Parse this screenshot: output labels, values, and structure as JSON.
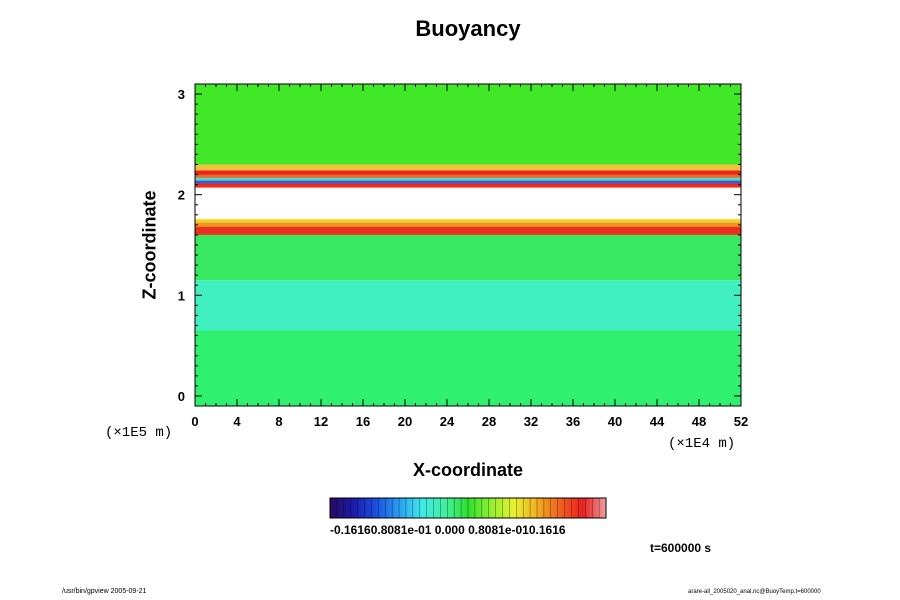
{
  "chart_data": {
    "type": "heatmap",
    "title": "Buoyancy",
    "xlabel": "X-coordinate",
    "ylabel": "Z-coordinate",
    "x_unit": "(×1E4 m)",
    "y_unit": "(×1E5 m)",
    "xlim": [
      0,
      52
    ],
    "ylim": [
      -0.1,
      3.1
    ],
    "x_ticks": [
      "0",
      "4",
      "8",
      "12",
      "16",
      "20",
      "24",
      "28",
      "32",
      "36",
      "40",
      "44",
      "48",
      "52"
    ],
    "y_ticks": [
      "0",
      "1",
      "2",
      "3"
    ],
    "colorbar": {
      "range": [
        -0.1616,
        0.1616
      ],
      "labels_text": "-0.16160.8081e-01 0.000 0.8081e-010.1616",
      "colors": [
        "#2a0a5e",
        "#1a1aa8",
        "#1a4fe0",
        "#2aa0f0",
        "#40e8e8",
        "#40f0a0",
        "#30e030",
        "#90f030",
        "#e8f030",
        "#f0b020",
        "#f06020",
        "#e82020",
        "#f0a0a0"
      ]
    },
    "layers": [
      {
        "z_bottom": -0.1,
        "z_top": 0.65,
        "color": "#30f070",
        "label": "near-zero slightly positive"
      },
      {
        "z_bottom": 0.65,
        "z_top": 1.15,
        "color": "#40f0c0",
        "label": "slightly negative"
      },
      {
        "z_bottom": 1.15,
        "z_top": 1.6,
        "color": "#38e860",
        "label": "near-zero"
      },
      {
        "z_bottom": 1.6,
        "z_top": 1.75,
        "color": "#f03020",
        "label": "strong positive band"
      },
      {
        "z_bottom": 1.75,
        "z_top": 2.07,
        "color": "#ffffff",
        "label": "out of range"
      },
      {
        "z_bottom": 2.07,
        "z_top": 2.3,
        "color": "#f04020",
        "label": "mixed positive/negative bands"
      },
      {
        "z_bottom": 2.3,
        "z_top": 3.1,
        "color": "#40e828",
        "label": "near-zero"
      }
    ],
    "annotation": "t=600000 s"
  },
  "footer": {
    "left": "/usr/bin/gpview 2005-09-21",
    "right": "arare-all_2005020_anal.nc@BuoyTemp,t=600000"
  }
}
